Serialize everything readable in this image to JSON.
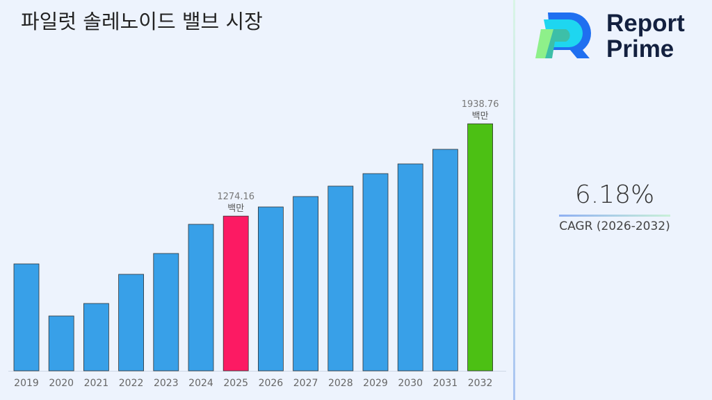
{
  "chart_data": {
    "type": "bar",
    "title": "파일럿 솔레노이드 밸브 시장",
    "categories": [
      "2019",
      "2020",
      "2021",
      "2022",
      "2023",
      "2024",
      "2025",
      "2026",
      "2027",
      "2028",
      "2029",
      "2030",
      "2031",
      "2032"
    ],
    "values": [
      930,
      555,
      645,
      855,
      1005,
      1215,
      1274.16,
      1340,
      1415,
      1490,
      1580,
      1650,
      1755,
      1938.76
    ],
    "ylim": [
      160,
      2000
    ],
    "grid": false,
    "colors": {
      "default": "#38a0e8",
      "highlight_2025": "#fc1a63",
      "highlight_2032": "#4cc014"
    },
    "annotations": [
      {
        "category": "2025",
        "value": "1274.16",
        "unit": "백만"
      },
      {
        "category": "2032",
        "value": "1938.76",
        "unit": "백만"
      }
    ]
  },
  "brand": {
    "line1": "Report",
    "line2": "Prime"
  },
  "cagr": {
    "value": "6.18%",
    "label": "CAGR (2026-2032)"
  }
}
